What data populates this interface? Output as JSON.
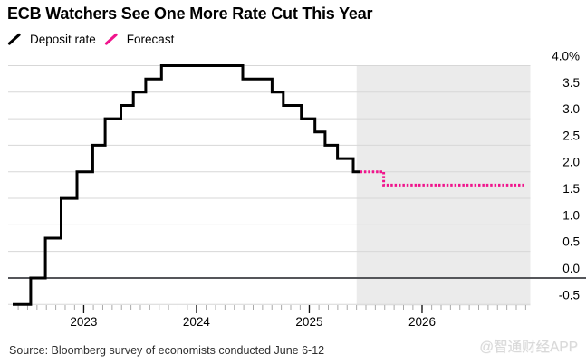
{
  "header": {
    "title": "ECB Watchers See One More Rate Cut This Year"
  },
  "legend": [
    {
      "label": "Deposit rate",
      "color": "#000000",
      "style": "solid"
    },
    {
      "label": "Forecast",
      "color": "#f0148c",
      "style": "dotted"
    }
  ],
  "footer": {
    "source": "Source: Bloomberg survey of economists conducted June 6-12",
    "watermark": "@智通财经APP"
  },
  "chart_data": {
    "type": "line",
    "subtype": "step",
    "title": "ECB Watchers See One More Rate Cut This Year",
    "unit": "%",
    "grid": true,
    "legend_position": "top-left",
    "x_domain": [
      2022.33,
      2026.96
    ],
    "y_domain": [
      -0.5,
      4.0
    ],
    "x_ticks": [
      {
        "t": 2023,
        "label": "2023"
      },
      {
        "t": 2024,
        "label": "2024"
      },
      {
        "t": 2025,
        "label": "2025"
      },
      {
        "t": 2026,
        "label": "2026"
      }
    ],
    "minor_tick_interval_years": 0.08333,
    "y_ticks": [
      {
        "v": 4.0,
        "label": "4.0%"
      },
      {
        "v": 3.5,
        "label": "3.5"
      },
      {
        "v": 3.0,
        "label": "3.0"
      },
      {
        "v": 2.5,
        "label": "2.5"
      },
      {
        "v": 2.0,
        "label": "2.0"
      },
      {
        "v": 1.5,
        "label": "1.5"
      },
      {
        "v": 1.0,
        "label": "1.0"
      },
      {
        "v": 0.5,
        "label": "0.5"
      },
      {
        "v": 0.0,
        "label": "0.0"
      },
      {
        "v": -0.5,
        "label": "-0.5"
      }
    ],
    "zero_line_value": 0.0,
    "forecast_region": {
      "from": 2025.42,
      "to": 2026.96,
      "color": "#ebebeb"
    },
    "colors": {
      "gridline": "#d7d7d7",
      "zero_line": "#55565a",
      "minor_tick": "#a9a9a9",
      "major_tick": "#111111",
      "axis_label": "#000000"
    },
    "series": [
      {
        "name": "Deposit rate",
        "color": "#000000",
        "line": "solid",
        "steps": [
          [
            2022.37,
            -0.5
          ],
          [
            2022.53,
            0.0
          ],
          [
            2022.66,
            0.75
          ],
          [
            2022.8,
            1.5
          ],
          [
            2022.94,
            2.0
          ],
          [
            2023.08,
            2.5
          ],
          [
            2023.19,
            3.0
          ],
          [
            2023.33,
            3.25
          ],
          [
            2023.44,
            3.5
          ],
          [
            2023.55,
            3.75
          ],
          [
            2023.69,
            4.0
          ],
          [
            2024.41,
            3.75
          ],
          [
            2024.67,
            3.5
          ],
          [
            2024.77,
            3.25
          ],
          [
            2024.93,
            3.0
          ],
          [
            2025.05,
            2.75
          ],
          [
            2025.14,
            2.5
          ],
          [
            2025.25,
            2.25
          ],
          [
            2025.39,
            2.0
          ],
          [
            2025.45,
            2.0
          ]
        ]
      },
      {
        "name": "Forecast",
        "color": "#f0148c",
        "line": "dotted",
        "steps": [
          [
            2025.45,
            2.0
          ],
          [
            2025.66,
            1.75
          ],
          [
            2026.92,
            1.75
          ]
        ]
      }
    ]
  }
}
